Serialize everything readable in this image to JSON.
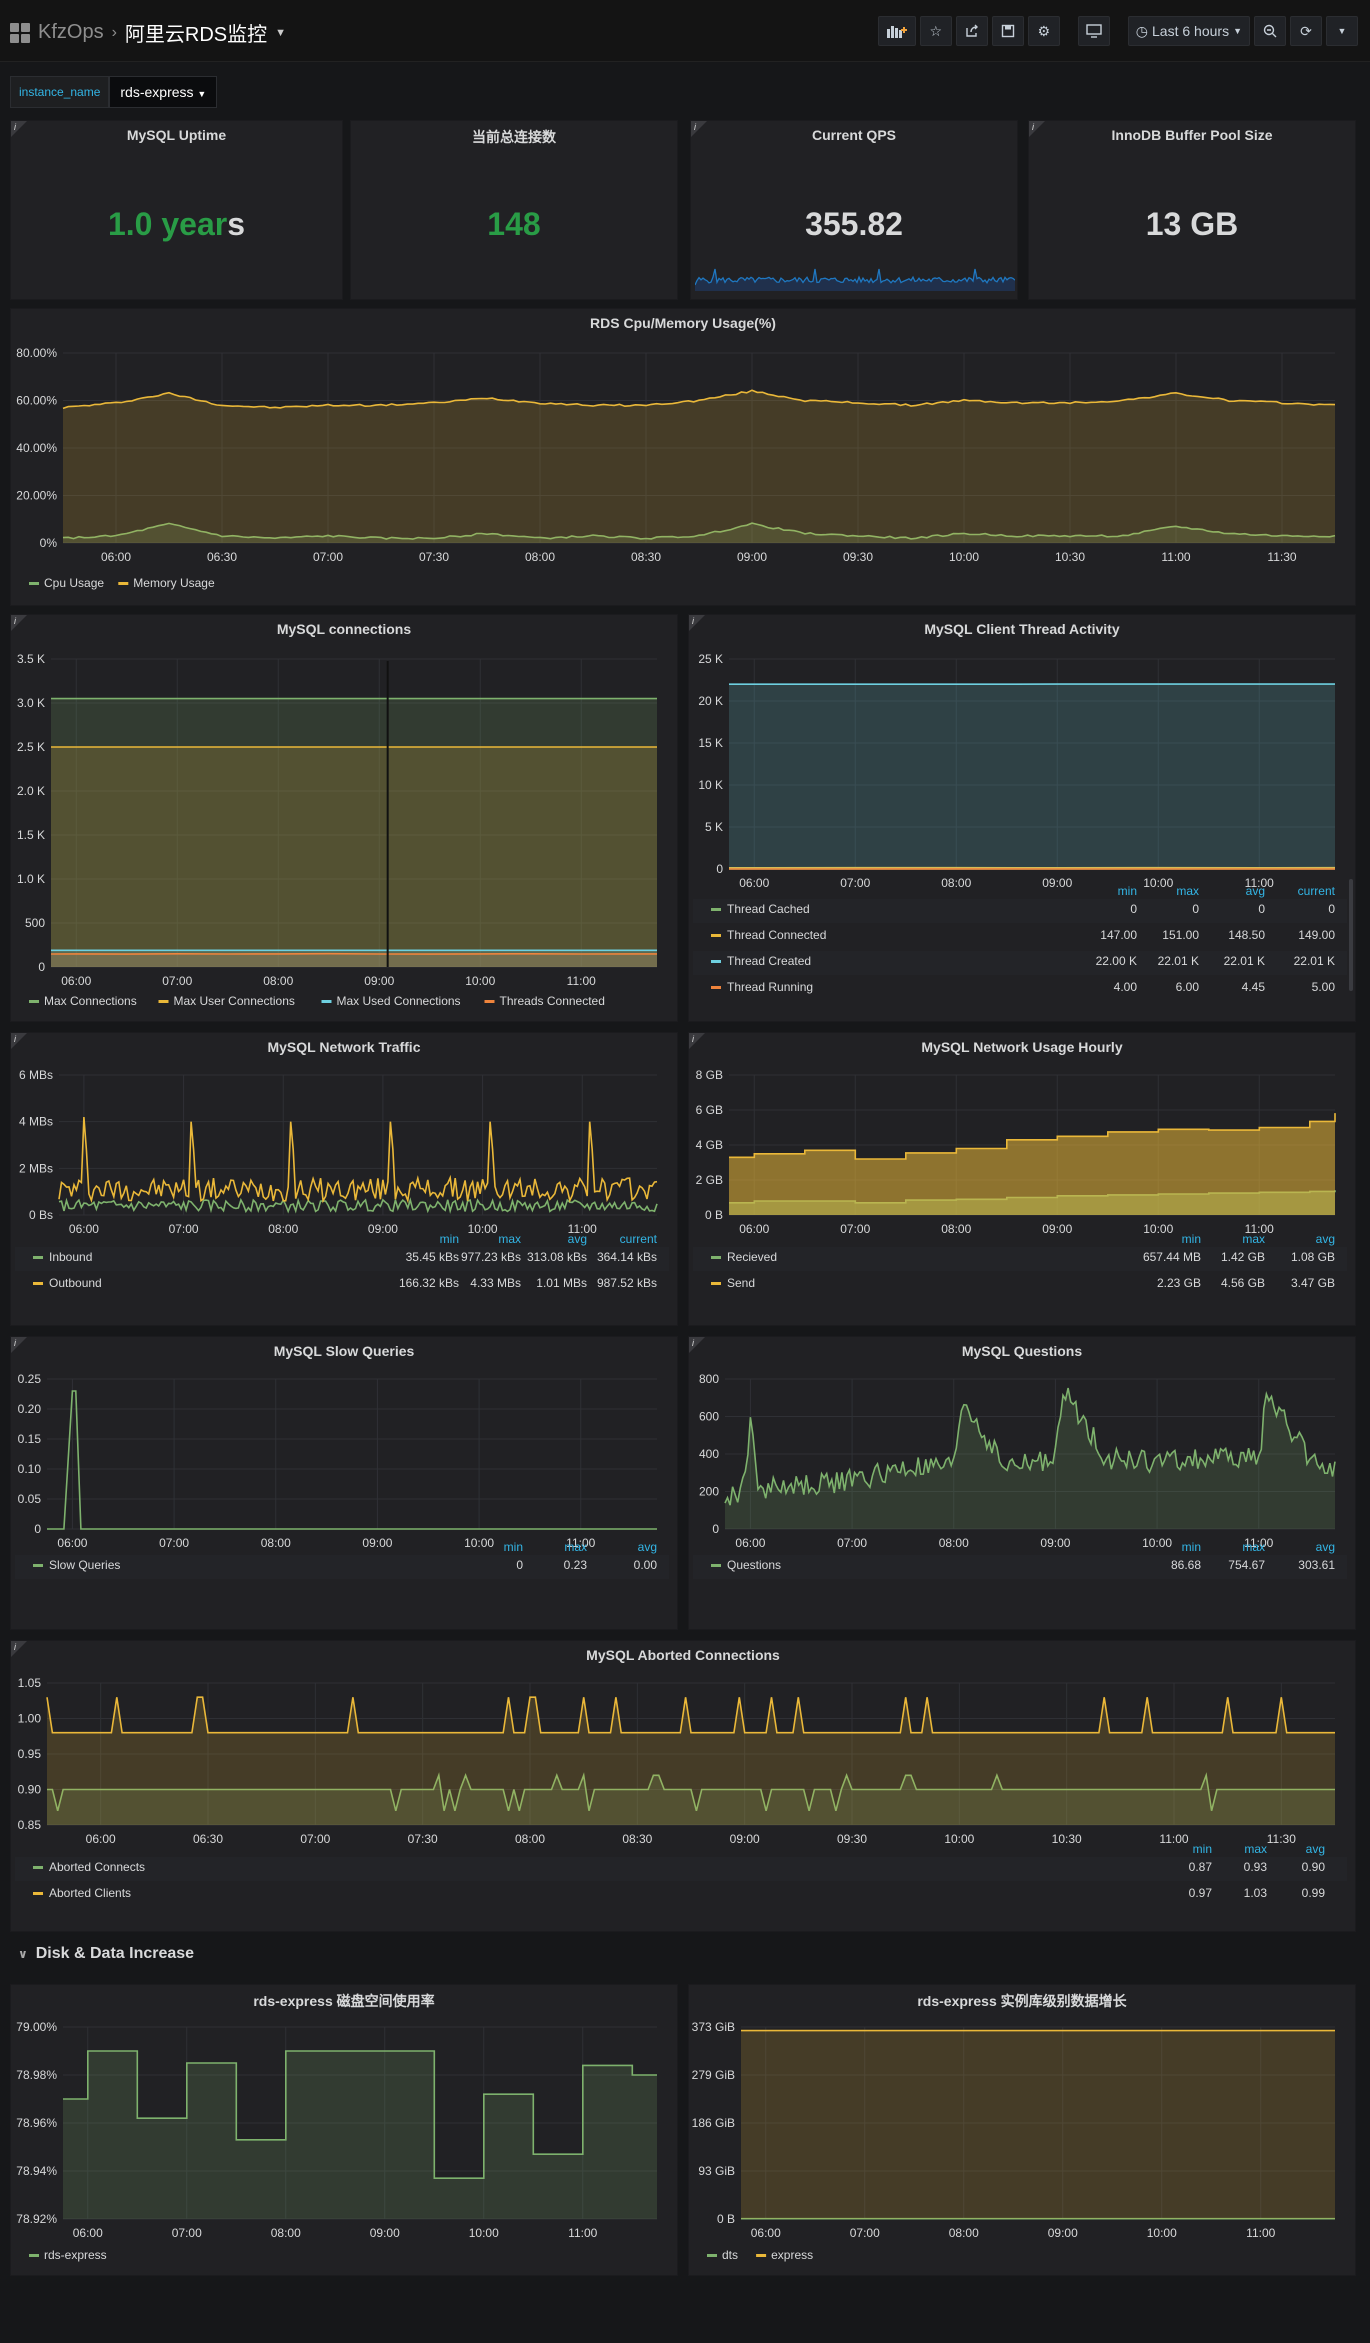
{
  "topbar": {
    "folder": "KfzOps",
    "separator": "›",
    "title": "阿里云RDS监控",
    "time_range": "Last 6 hours",
    "icons": [
      "add-panel-icon",
      "star-icon",
      "share-icon",
      "save-icon",
      "settings-icon",
      "tv-mode-icon",
      "clock-icon",
      "zoom-out-icon",
      "refresh-icon",
      "chevron-down-icon"
    ]
  },
  "variables": {
    "label": "instance_name",
    "value": "rds-express"
  },
  "stats": [
    {
      "title": "MySQL Uptime",
      "value_main": "1.0 year",
      "value_tail": "s",
      "color": "#299c46"
    },
    {
      "title": "当前总连接数",
      "value_main": "148",
      "color": "#299c46"
    },
    {
      "title": "Current QPS",
      "value_main": "355.82",
      "color": "#d8d9da"
    },
    {
      "title": "InnoDB Buffer Pool Size",
      "value_main": "13 GB",
      "color": "#d8d9da"
    }
  ],
  "row_disk": {
    "title": "Disk & Data Increase"
  },
  "colors": {
    "green": "#7eb26d",
    "yellow": "#eab839",
    "blue": "#6ed0e0",
    "orange": "#ef843c",
    "legend_header": "#33b5e5"
  },
  "chart_data": [
    {
      "id": "cpu_mem",
      "type": "area",
      "title": "RDS Cpu/Memory Usage(%)",
      "x": [
        "05:45",
        "06:00",
        "06:15",
        "06:30",
        "06:45",
        "07:00",
        "07:15",
        "07:30",
        "07:45",
        "08:00",
        "08:15",
        "08:30",
        "08:45",
        "09:00",
        "09:15",
        "09:30",
        "09:45",
        "10:00",
        "10:15",
        "10:30",
        "10:45",
        "11:00",
        "11:15",
        "11:30",
        "11:45"
      ],
      "xticks": [
        "06:00",
        "06:30",
        "07:00",
        "07:30",
        "08:00",
        "08:30",
        "09:00",
        "09:30",
        "10:00",
        "10:30",
        "11:00",
        "11:30"
      ],
      "ylim": [
        0,
        80
      ],
      "yticks": [
        "0%",
        "20.00%",
        "40.00%",
        "60.00%",
        "80.00%"
      ],
      "series": [
        {
          "name": "Cpu Usage",
          "color": "#7eb26d",
          "values": [
            2,
            3,
            8,
            3,
            2,
            3,
            2,
            2,
            4,
            2,
            3,
            2,
            3,
            8,
            4,
            3,
            2,
            4,
            3,
            3,
            3,
            7,
            4,
            3,
            3
          ]
        },
        {
          "name": "Memory Usage",
          "color": "#eab839",
          "values": [
            57,
            59,
            63,
            58,
            57,
            58,
            58,
            59,
            61,
            59,
            58,
            58,
            60,
            64,
            60,
            59,
            58,
            60,
            59,
            59,
            60,
            63,
            60,
            59,
            58
          ]
        }
      ]
    },
    {
      "id": "connections",
      "type": "area",
      "title": "MySQL connections",
      "x": [
        "05:45",
        "06:00",
        "06:30",
        "07:00",
        "07:30",
        "08:00",
        "08:30",
        "09:00",
        "09:30",
        "10:00",
        "10:30",
        "11:00",
        "11:30",
        "11:45"
      ],
      "xticks": [
        "06:00",
        "07:00",
        "08:00",
        "09:00",
        "10:00",
        "11:00"
      ],
      "ylim": [
        0,
        3500
      ],
      "yticks": [
        "0",
        "500",
        "1.0 K",
        "1.5 K",
        "2.0 K",
        "2.5 K",
        "3.0 K",
        "3.5 K"
      ],
      "series": [
        {
          "name": "Max Connections",
          "color": "#7eb26d",
          "values": [
            3050,
            3050,
            3050,
            3050,
            3050,
            3050,
            3050,
            3050,
            3050,
            3050,
            3050,
            3050,
            3050,
            3050
          ]
        },
        {
          "name": "Max User Connections",
          "color": "#eab839",
          "values": [
            2500,
            2500,
            2500,
            2500,
            2500,
            2500,
            2500,
            2500,
            2500,
            2500,
            2500,
            2500,
            2500,
            2500
          ]
        },
        {
          "name": "Max Used Connections",
          "color": "#6ed0e0",
          "values": [
            190,
            190,
            190,
            190,
            190,
            190,
            190,
            190,
            190,
            190,
            190,
            190,
            190,
            190
          ]
        },
        {
          "name": "Threads Connected",
          "color": "#ef843c",
          "values": [
            148,
            149,
            147,
            150,
            148,
            149,
            151,
            148,
            147,
            149,
            150,
            148,
            149,
            149
          ]
        }
      ]
    },
    {
      "id": "threads",
      "type": "area",
      "title": "MySQL Client Thread Activity",
      "x": [
        "05:45",
        "06:00",
        "07:00",
        "08:00",
        "09:00",
        "10:00",
        "11:00",
        "11:45"
      ],
      "xticks": [
        "06:00",
        "07:00",
        "08:00",
        "09:00",
        "10:00",
        "11:00"
      ],
      "ylim": [
        0,
        25000
      ],
      "yticks": [
        "0",
        "5 K",
        "10 K",
        "15 K",
        "20 K",
        "25 K"
      ],
      "series": [
        {
          "name": "Thread Cached",
          "color": "#7eb26d",
          "values": [
            0,
            0,
            0,
            0,
            0,
            0,
            0,
            0
          ]
        },
        {
          "name": "Thread Connected",
          "color": "#eab839",
          "values": [
            147,
            148,
            149,
            150,
            148,
            149,
            148,
            149
          ]
        },
        {
          "name": "Thread Created",
          "color": "#6ed0e0",
          "values": [
            22000,
            22000,
            22005,
            22005,
            22008,
            22010,
            22010,
            22010
          ]
        },
        {
          "name": "Thread Running",
          "color": "#ef843c",
          "values": [
            4,
            5,
            4,
            6,
            4,
            5,
            4,
            5
          ]
        }
      ],
      "legend": {
        "headers": [
          "min",
          "max",
          "avg",
          "current"
        ],
        "rows": [
          [
            "Thread Cached",
            "0",
            "0",
            "0",
            "0"
          ],
          [
            "Thread Connected",
            "147.00",
            "151.00",
            "148.50",
            "149.00"
          ],
          [
            "Thread Created",
            "22.00 K",
            "22.01 K",
            "22.01 K",
            "22.01 K"
          ],
          [
            "Thread Running",
            "4.00",
            "6.00",
            "4.45",
            "5.00"
          ]
        ]
      }
    },
    {
      "id": "network",
      "type": "line",
      "title": "MySQL Network Traffic",
      "x": [
        "05:45",
        "06:00",
        "07:00",
        "08:00",
        "09:00",
        "10:00",
        "11:00",
        "11:45"
      ],
      "xticks": [
        "06:00",
        "07:00",
        "08:00",
        "09:00",
        "10:00",
        "11:00"
      ],
      "ylim": [
        0,
        6
      ],
      "yticks": [
        "0 Bs",
        "2 MBs",
        "4 MBs",
        "6 MBs"
      ],
      "series": [
        {
          "name": "Inbound",
          "color": "#7eb26d",
          "values": [
            0.3,
            0.9,
            0.3,
            0.9,
            0.3,
            0.9,
            0.3,
            0.36
          ]
        },
        {
          "name": "Outbound",
          "color": "#eab839",
          "values": [
            0.5,
            4.1,
            3.9,
            4.0,
            4.3,
            4.0,
            4.2,
            0.99
          ]
        }
      ],
      "legend": {
        "headers": [
          "min",
          "max",
          "avg",
          "current"
        ],
        "rows": [
          [
            "Inbound",
            "35.45 kBs",
            "977.23 kBs",
            "313.08 kBs",
            "364.14 kBs"
          ],
          [
            "Outbound",
            "166.32 kBs",
            "4.33 MBs",
            "1.01 MBs",
            "987.52 kBs"
          ]
        ]
      }
    },
    {
      "id": "network_hourly",
      "type": "bar",
      "title": "MySQL Network Usage Hourly",
      "x": [
        "05:45",
        "06:00",
        "06:30",
        "07:00",
        "07:30",
        "08:00",
        "08:30",
        "09:00",
        "09:30",
        "10:00",
        "10:30",
        "11:00",
        "11:30",
        "11:45"
      ],
      "xticks": [
        "06:00",
        "07:00",
        "08:00",
        "09:00",
        "10:00",
        "11:00"
      ],
      "ylim": [
        0,
        8
      ],
      "yticks": [
        "0 B",
        "2 GB",
        "4 GB",
        "6 GB",
        "8 GB"
      ],
      "series": [
        {
          "name": "Recieved",
          "color": "#7eb26d",
          "values": [
            0.7,
            0.8,
            0.8,
            0.7,
            0.85,
            0.9,
            1.0,
            1.1,
            1.15,
            1.2,
            1.25,
            1.3,
            1.35,
            1.42
          ]
        },
        {
          "name": "Send",
          "color": "#eab839",
          "values": [
            2.6,
            2.7,
            2.9,
            2.5,
            2.7,
            2.9,
            3.3,
            3.4,
            3.6,
            3.7,
            3.6,
            3.7,
            4.0,
            4.4
          ]
        }
      ],
      "legend": {
        "headers": [
          "min",
          "max",
          "avg"
        ],
        "rows": [
          [
            "Recieved",
            "657.44 MB",
            "1.42 GB",
            "1.08 GB"
          ],
          [
            "Send",
            "2.23 GB",
            "4.56 GB",
            "3.47 GB"
          ]
        ]
      }
    },
    {
      "id": "slow",
      "type": "line",
      "title": "MySQL Slow Queries",
      "x": [
        "05:45",
        "05:55",
        "06:00",
        "06:02",
        "06:05",
        "07:00",
        "08:00",
        "09:00",
        "10:00",
        "11:00",
        "11:45"
      ],
      "xticks": [
        "06:00",
        "07:00",
        "08:00",
        "09:00",
        "10:00",
        "11:00"
      ],
      "ylim": [
        0,
        0.25
      ],
      "yticks": [
        "0",
        "0.05",
        "0.10",
        "0.15",
        "0.20",
        "0.25"
      ],
      "series": [
        {
          "name": "Slow Queries",
          "color": "#7eb26d",
          "values": [
            0,
            0,
            0.23,
            0.23,
            0,
            0,
            0,
            0,
            0,
            0,
            0
          ]
        }
      ],
      "legend": {
        "headers": [
          "min",
          "max",
          "avg"
        ],
        "rows": [
          [
            "Slow Queries",
            "0",
            "0.23",
            "0.00"
          ]
        ]
      }
    },
    {
      "id": "questions",
      "type": "area",
      "title": "MySQL Questions",
      "x": [
        "05:45",
        "05:55",
        "06:00",
        "06:05",
        "06:30",
        "07:00",
        "07:30",
        "08:00",
        "08:05",
        "08:30",
        "09:00",
        "09:05",
        "09:30",
        "10:00",
        "10:30",
        "11:00",
        "11:05",
        "11:30",
        "11:45"
      ],
      "xticks": [
        "06:00",
        "07:00",
        "08:00",
        "09:00",
        "10:00",
        "11:00"
      ],
      "ylim": [
        0,
        800
      ],
      "yticks": [
        "0",
        "200",
        "400",
        "600",
        "800"
      ],
      "series": [
        {
          "name": "Questions",
          "color": "#7eb26d",
          "values": [
            150,
            200,
            550,
            220,
            230,
            260,
            320,
            330,
            690,
            330,
            380,
            740,
            380,
            360,
            380,
            380,
            720,
            380,
            320
          ]
        }
      ],
      "legend": {
        "headers": [
          "min",
          "max",
          "avg"
        ],
        "rows": [
          [
            "Questions",
            "86.68",
            "754.67",
            "303.61"
          ]
        ]
      }
    },
    {
      "id": "aborted",
      "type": "line",
      "title": "MySQL Aborted Connections",
      "x": [
        "05:45",
        "06:00",
        "06:30",
        "07:00",
        "07:30",
        "08:00",
        "08:30",
        "09:00",
        "09:30",
        "10:00",
        "10:30",
        "11:00",
        "11:30",
        "11:45"
      ],
      "xticks": [
        "06:00",
        "06:30",
        "07:00",
        "07:30",
        "08:00",
        "08:30",
        "09:00",
        "09:30",
        "10:00",
        "10:30",
        "11:00",
        "11:30"
      ],
      "ylim": [
        0.85,
        1.05
      ],
      "yticks": [
        "0.85",
        "0.90",
        "0.95",
        "1.00",
        "1.05"
      ],
      "series": [
        {
          "name": "Aborted Connects",
          "color": "#7eb26d",
          "values": [
            0.9,
            0.9,
            0.9,
            0.9,
            0.9,
            0.9,
            0.9,
            0.9,
            0.9,
            0.9,
            0.9,
            0.9,
            0.9,
            0.9
          ]
        },
        {
          "name": "Aborted Clients",
          "color": "#eab839",
          "values": [
            0.98,
            0.98,
            0.98,
            0.98,
            0.98,
            0.98,
            0.98,
            0.98,
            0.98,
            0.98,
            0.98,
            0.98,
            0.98,
            0.98
          ]
        }
      ],
      "legend": {
        "headers": [
          "min",
          "max",
          "avg"
        ],
        "rows": [
          [
            "Aborted Connects",
            "0.87",
            "0.93",
            "0.90"
          ],
          [
            "Aborted Clients",
            "0.97",
            "1.03",
            "0.99"
          ]
        ]
      }
    },
    {
      "id": "disk",
      "type": "area",
      "title": "rds-express 磁盘空间使用率",
      "x": [
        "05:45",
        "06:00",
        "06:30",
        "07:00",
        "07:30",
        "08:00",
        "08:30",
        "09:00",
        "09:30",
        "10:00",
        "10:30",
        "11:00",
        "11:30",
        "11:45"
      ],
      "xticks": [
        "06:00",
        "07:00",
        "08:00",
        "09:00",
        "10:00",
        "11:00"
      ],
      "ylim": [
        78.92,
        79.0
      ],
      "yticks": [
        "78.92%",
        "78.94%",
        "78.96%",
        "78.98%",
        "79.00%"
      ],
      "series": [
        {
          "name": "rds-express",
          "color": "#7eb26d",
          "values": [
            78.97,
            78.99,
            78.962,
            78.985,
            78.953,
            78.99,
            78.99,
            78.99,
            78.937,
            78.972,
            78.947,
            78.984,
            78.98,
            78.98
          ]
        }
      ]
    },
    {
      "id": "data_growth",
      "type": "line",
      "title": "rds-express 实例库级别数据增长",
      "x": [
        "05:45",
        "06:00",
        "07:00",
        "08:00",
        "09:00",
        "10:00",
        "11:00",
        "11:45"
      ],
      "xticks": [
        "06:00",
        "07:00",
        "08:00",
        "09:00",
        "10:00",
        "11:00"
      ],
      "ylim": [
        0,
        373
      ],
      "yticks": [
        "0 B",
        "93 GiB",
        "186 GiB",
        "279 GiB",
        "373 GiB"
      ],
      "series": [
        {
          "name": "dts",
          "color": "#7eb26d",
          "values": [
            0.5,
            0.5,
            0.5,
            0.5,
            0.5,
            0.5,
            0.5,
            0.5
          ]
        },
        {
          "name": "express",
          "color": "#eab839",
          "values": [
            366,
            366,
            366,
            366,
            366,
            366,
            366,
            366
          ]
        }
      ]
    }
  ]
}
